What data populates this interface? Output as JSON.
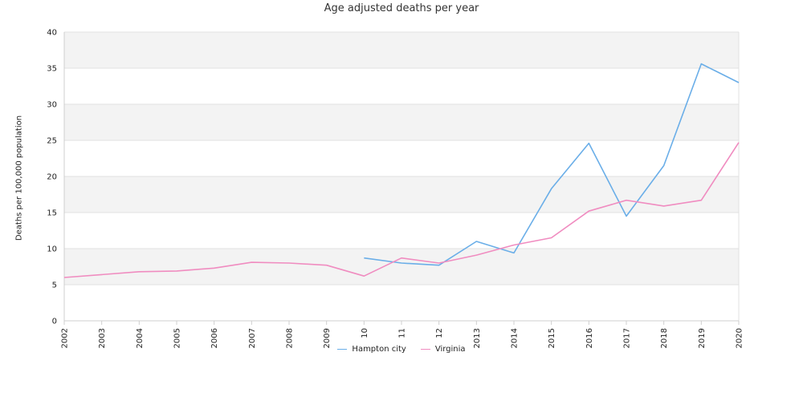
{
  "chart_data": {
    "type": "line",
    "title": "Age adjusted deaths per year",
    "xlabel": "",
    "ylabel": "Deaths per 100,000 population",
    "categories": [
      "2002",
      "2003",
      "2004",
      "2005",
      "2006",
      "2007",
      "2008",
      "2009",
      "10",
      "11",
      "12",
      "2013",
      "2014",
      "2015",
      "2016",
      "2017",
      "2018",
      "2019",
      "2020"
    ],
    "ylim": [
      0,
      40
    ],
    "yticks": [
      0,
      5,
      10,
      15,
      20,
      25,
      30,
      35,
      40
    ],
    "grid": true,
    "legend_position": "bottom",
    "series": [
      {
        "name": "Hampton city",
        "color": "#6aaee8",
        "values": [
          null,
          null,
          null,
          null,
          null,
          null,
          null,
          null,
          8.7,
          8.0,
          7.7,
          11.0,
          9.4,
          18.3,
          24.6,
          14.5,
          21.5,
          35.6,
          33.0
        ]
      },
      {
        "name": "Virginia",
        "color": "#f08cc0",
        "values": [
          6.0,
          6.4,
          6.8,
          6.9,
          7.3,
          8.1,
          8.0,
          7.7,
          6.2,
          8.7,
          8.0,
          9.1,
          10.5,
          11.5,
          15.2,
          16.7,
          15.9,
          16.7,
          24.7
        ]
      }
    ]
  }
}
